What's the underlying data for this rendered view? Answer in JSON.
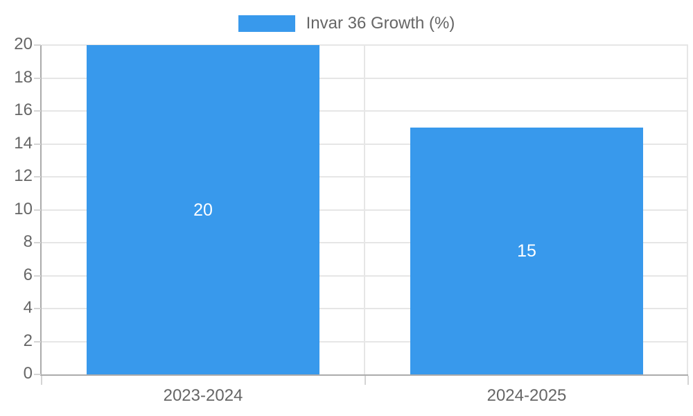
{
  "chart_data": {
    "type": "bar",
    "title": "",
    "legend": {
      "label": "Invar 36 Growth (%)",
      "position": "top"
    },
    "categories": [
      "2023-2024",
      "2024-2025"
    ],
    "values": [
      20,
      15
    ],
    "bar_labels": [
      "20",
      "15"
    ],
    "xlabel": "",
    "ylabel": "",
    "ylim": [
      0,
      20
    ],
    "ytick_step": 2,
    "ytick_labels": [
      "0",
      "2",
      "4",
      "6",
      "8",
      "10",
      "12",
      "14",
      "16",
      "18",
      "20"
    ],
    "grid": true,
    "colors": {
      "bar": "#3899EC",
      "grid": "#E6E6E6",
      "axis": "#ABABAB",
      "tick": "#D4D4D4",
      "label_text": "#666666",
      "bar_label_text": "#FFFFFF",
      "background": "#FFFFFF"
    }
  }
}
